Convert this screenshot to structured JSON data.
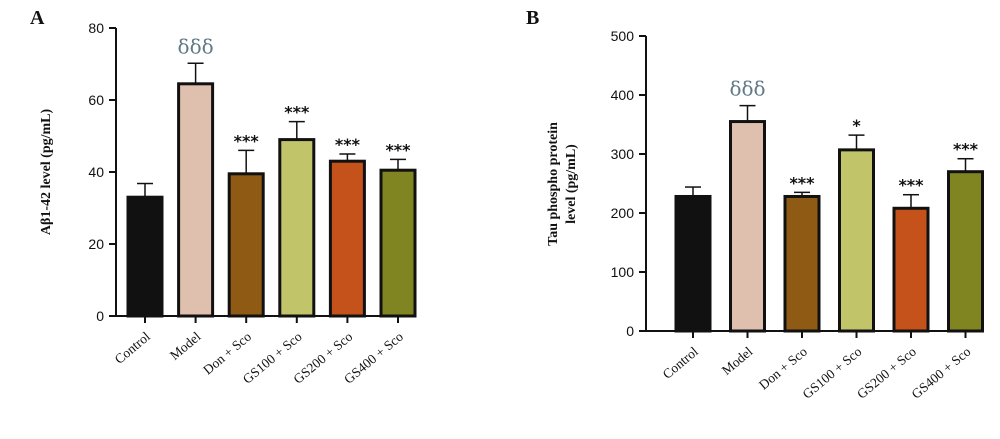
{
  "chart_data": [
    {
      "type": "bar",
      "panel_label": "A",
      "ylabel": "Aβ1-42 level (pg/mL)",
      "categories": [
        "Control",
        "Model",
        "Don + Sco",
        "GS100 + Sco",
        "GS200 + Sco",
        "GS400 + Sco"
      ],
      "values": [
        33,
        64.5,
        39.5,
        49,
        43,
        40.5
      ],
      "errors": [
        3.8,
        5.7,
        6.5,
        5,
        2,
        3
      ],
      "annotations": [
        "",
        "δδδ",
        "***",
        "***",
        "***",
        "***"
      ],
      "colors": [
        "#111111",
        "#dfbfae",
        "#8f5a14",
        "#c2c46a",
        "#c4521a",
        "#808522"
      ],
      "ylim": [
        0,
        80
      ],
      "yticks": [
        0,
        20,
        40,
        60,
        80
      ]
    },
    {
      "type": "bar",
      "panel_label": "B",
      "ylabel": "Tau phospho protein level (pg/mL)",
      "ylabel_lines": [
        "Tau phospho protein",
        "level (pg/mL)"
      ],
      "categories": [
        "Control",
        "Model",
        "Don + Sco",
        "GS100 + Sco",
        "GS200 + Sco",
        "GS400 + Sco"
      ],
      "values": [
        228,
        355,
        228,
        307,
        208,
        270
      ],
      "errors": [
        16,
        27,
        7,
        25,
        23,
        22
      ],
      "annotations": [
        "",
        "δδδ",
        "***",
        "*",
        "***",
        "***"
      ],
      "colors": [
        "#111111",
        "#dfbfae",
        "#8f5a14",
        "#c2c46a",
        "#c4521a",
        "#808522"
      ],
      "ylim": [
        0,
        500
      ],
      "yticks": [
        0,
        100,
        200,
        300,
        400,
        500
      ]
    }
  ]
}
